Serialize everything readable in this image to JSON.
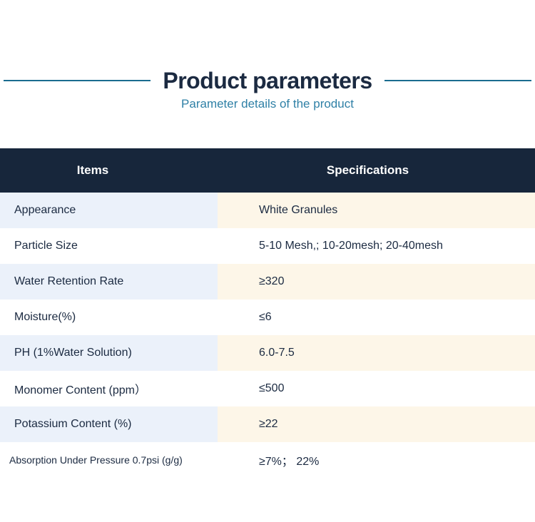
{
  "header": {
    "title": "Product parameters",
    "subtitle": "Parameter details of the product"
  },
  "table": {
    "columns": [
      "Items",
      "Specifications"
    ],
    "rows": [
      {
        "item": "Appearance",
        "spec": "White Granules"
      },
      {
        "item": "Particle Size",
        "spec": "5-10 Mesh,; 10-20mesh; 20-40mesh"
      },
      {
        "item": "Water Retention Rate",
        "spec": "≥320"
      },
      {
        "item": "Moisture(%)",
        "spec": "≤6"
      },
      {
        "item": "PH (1%Water Solution)",
        "spec": "6.0-7.5"
      },
      {
        "item": "Monomer Content (ppm）",
        "spec": "≤500"
      },
      {
        "item": "Potassium Content (%)",
        "spec": "≥22"
      },
      {
        "item": "Absorption Under Pressure 0.7psi (g/g)",
        "spec": "≥7%； 22%"
      }
    ]
  },
  "colors": {
    "header_bg": "#17263b",
    "text_dark": "#1b2a41",
    "row_item_alt": "#ebf1fa",
    "row_spec_alt": "#fdf6e8",
    "subtitle_teal": "#2f80a6",
    "line_teal": "#1a6c8f"
  }
}
